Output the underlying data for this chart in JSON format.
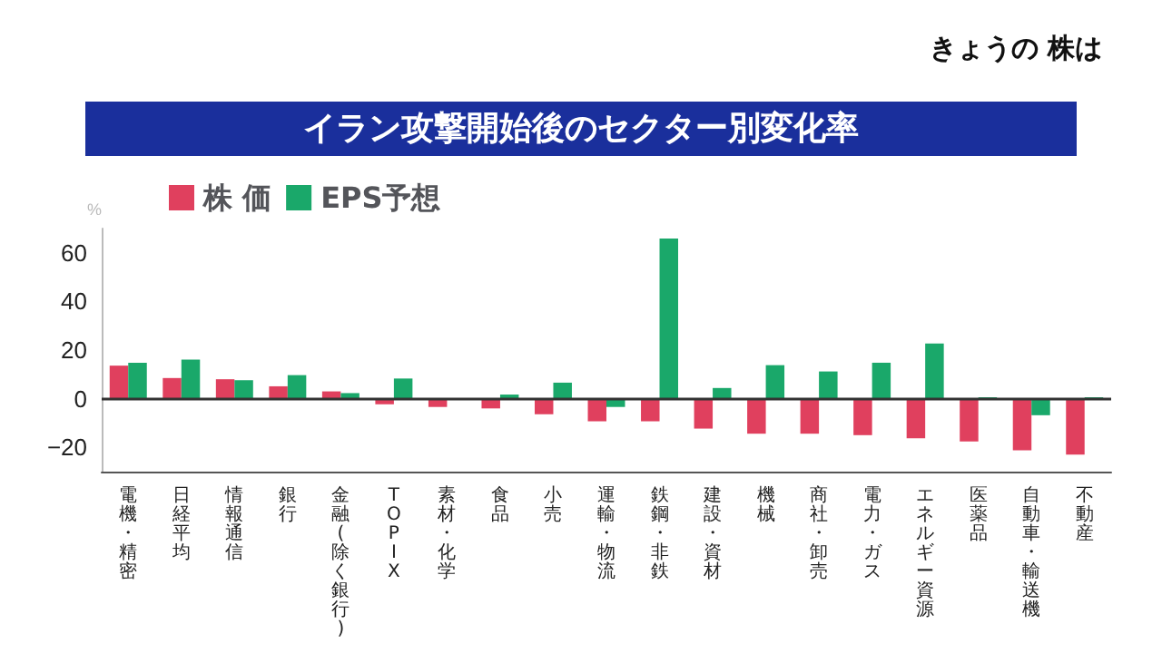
{
  "chart_data": {
    "type": "bar",
    "title": "イラン攻撃開始後のセクター別変化率",
    "annotations": [
      "きょうの 株は"
    ],
    "ylabel": "%",
    "categories": [
      "電機・精密",
      "日経平均",
      "情報通信",
      "銀行",
      "金融(除く銀行)",
      "TOPIX",
      "素材・化学",
      "食品",
      "小売",
      "運輸・物流",
      "鉄鋼・非鉄",
      "建設・資材",
      "機械",
      "商社・卸売",
      "電力・ガス",
      "エネルギー資源",
      "医薬品",
      "自動車・輸送機",
      "不動産"
    ],
    "series": [
      {
        "name": "株 価",
        "color": "#e0405e",
        "values": [
          13.6,
          8.5,
          8,
          5.1,
          3,
          -2.3,
          -3.4,
          -4,
          -6.4,
          -9.3,
          -9.3,
          -12.3,
          -14.4,
          -14.4,
          -15,
          -16.3,
          -17.6,
          -21.2,
          -23
        ]
      },
      {
        "name": "EPS予想",
        "color": "#1aa86a",
        "values": [
          14.8,
          16.1,
          7.6,
          9.7,
          2.3,
          8.3,
          0,
          1.7,
          6.6,
          -3.4,
          65.9,
          4.4,
          13.8,
          11.2,
          14.8,
          22.7,
          0.6,
          -6.8,
          0.6
        ]
      }
    ],
    "ylim": [
      -30,
      70
    ],
    "yticks": [
      {
        "value": -20,
        "label": "−20"
      },
      0,
      20,
      40,
      60
    ],
    "ref_lines": [
      {
        "axis": "y",
        "value": 0,
        "color": "#333333"
      }
    ],
    "legend": "top left",
    "grid": false
  }
}
